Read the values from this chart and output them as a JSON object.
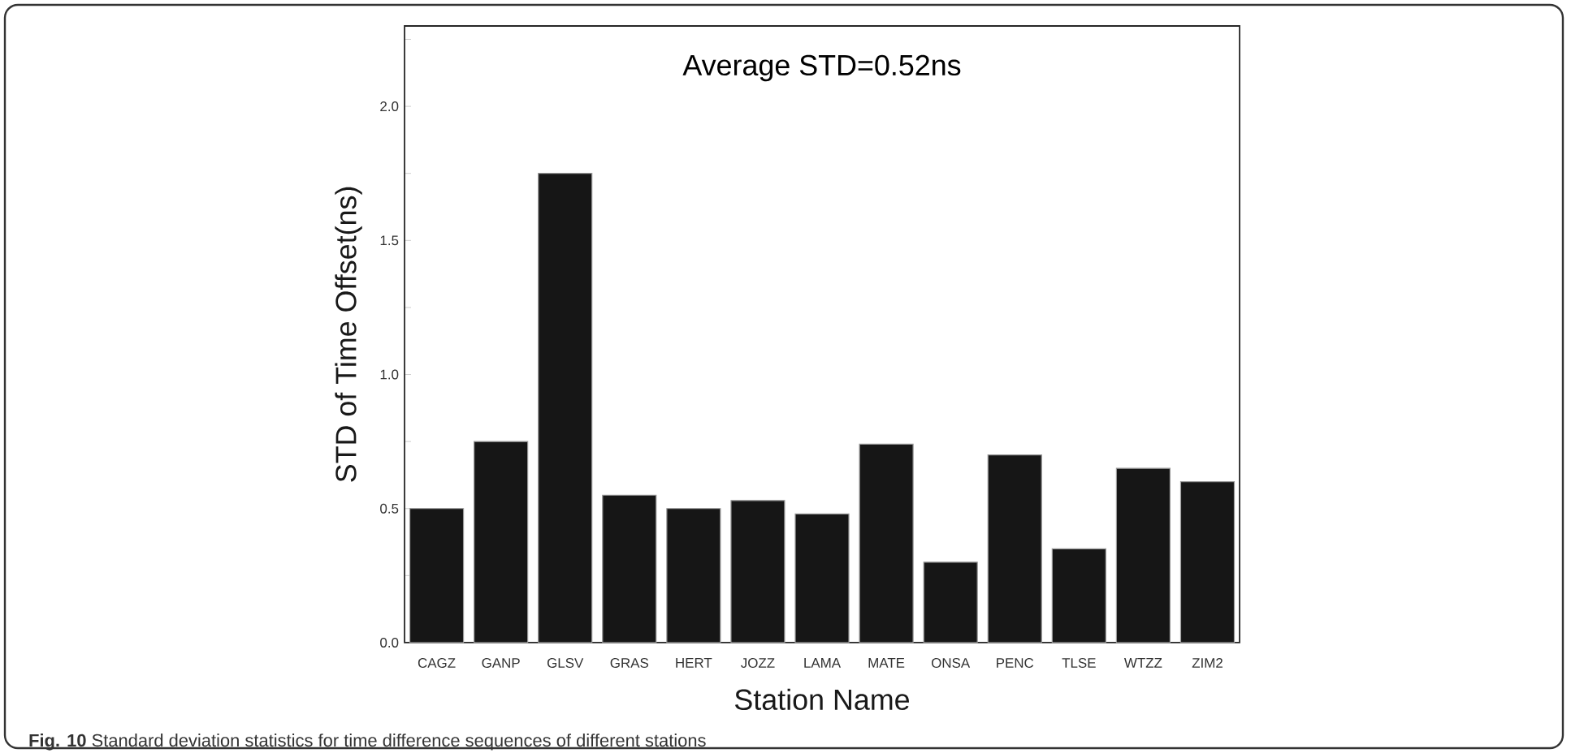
{
  "chart_data": {
    "type": "bar",
    "xlabel": "Station Name",
    "ylabel": "STD of Time Offset(ns)",
    "categories": [
      "CAGZ",
      "GANP",
      "GLSV",
      "GRAS",
      "HERT",
      "JOZZ",
      "LAMA",
      "MATE",
      "ONSA",
      "PENC",
      "TLSE",
      "WTZZ",
      "ZIM2"
    ],
    "values": [
      0.5,
      0.75,
      1.75,
      0.55,
      0.5,
      0.53,
      0.48,
      0.74,
      0.3,
      0.7,
      0.35,
      0.65,
      0.6
    ],
    "color": "#161616",
    "ylim": [
      0,
      2.3
    ],
    "yticks": [
      {
        "value": 0,
        "label": "0.0"
      },
      {
        "value": 0.25,
        "label": null
      },
      {
        "value": 0.5,
        "label": "0.5"
      },
      {
        "value": 0.75,
        "label": null
      },
      {
        "value": 1.0,
        "label": "1.0"
      },
      {
        "value": 1.25,
        "label": null
      },
      {
        "value": 1.5,
        "label": "1.5"
      },
      {
        "value": 1.75,
        "label": null
      },
      {
        "value": 2.0,
        "label": "2.0"
      },
      {
        "value": 2.25,
        "label": null
      }
    ],
    "grid": false,
    "annotations": [
      "Average STD=0.52ns",
      "**Fig. 10** Standard deviation statistics for time difference sequences of different stations"
    ]
  }
}
